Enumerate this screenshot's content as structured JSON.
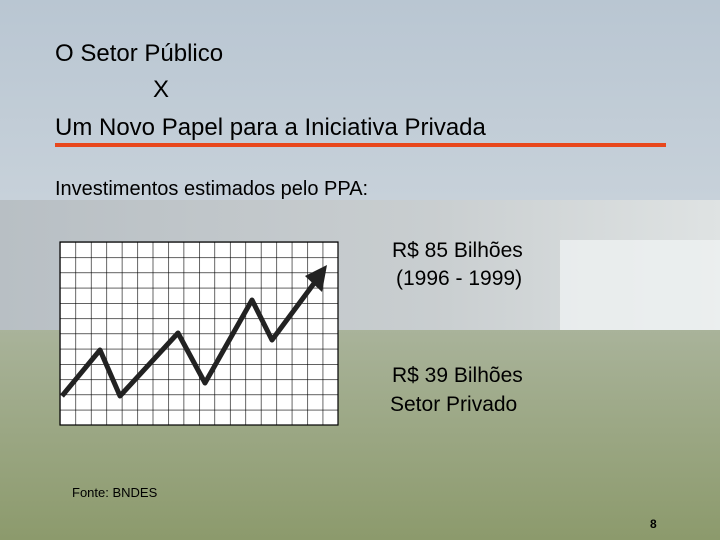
{
  "header": {
    "title_lines": [
      "O Setor Público",
      "X",
      "Um Novo Papel para a Iniciativa Privada"
    ]
  },
  "subtitle": "Investimentos estimados pelo PPA:",
  "notes": [
    {
      "lines": [
        "R$ 85 Bilhões",
        "(1996 - 1999)"
      ]
    },
    {
      "lines": [
        "R$ 39 Bilhões",
        "Setor Privado"
      ]
    }
  ],
  "footer": {
    "source": "Fonte: BNDES",
    "page_number": "8"
  }
}
